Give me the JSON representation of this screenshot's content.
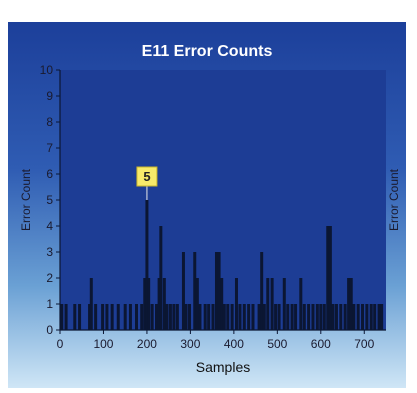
{
  "chart_data": {
    "type": "bar",
    "title": "E11 Error Counts",
    "xlabel": "Samples",
    "ylabel": "Error Count",
    "ylabel_right": "Error Count",
    "xlim": [
      0,
      750
    ],
    "ylim": [
      0,
      10
    ],
    "xticks": [
      0,
      100,
      200,
      300,
      400,
      500,
      600,
      700
    ],
    "yticks": [
      0,
      1,
      2,
      3,
      4,
      5,
      6,
      7,
      8,
      9,
      10
    ],
    "grid": false,
    "annotation": {
      "text": "5",
      "x": 200,
      "y": 5
    },
    "bar_color": "#0b1633",
    "plot_background": "#1d3d95",
    "points": [
      [
        4,
        1
      ],
      [
        14,
        1
      ],
      [
        34,
        1
      ],
      [
        45,
        1
      ],
      [
        68,
        1
      ],
      [
        72,
        2
      ],
      [
        82,
        1
      ],
      [
        98,
        1
      ],
      [
        108,
        1
      ],
      [
        120,
        1
      ],
      [
        134,
        1
      ],
      [
        150,
        1
      ],
      [
        162,
        1
      ],
      [
        176,
        1
      ],
      [
        188,
        1
      ],
      [
        195,
        2
      ],
      [
        200,
        5
      ],
      [
        204,
        2
      ],
      [
        212,
        1
      ],
      [
        222,
        1
      ],
      [
        228,
        2
      ],
      [
        232,
        4
      ],
      [
        240,
        2
      ],
      [
        246,
        1
      ],
      [
        254,
        1
      ],
      [
        262,
        1
      ],
      [
        270,
        1
      ],
      [
        284,
        3
      ],
      [
        290,
        1
      ],
      [
        298,
        1
      ],
      [
        310,
        3
      ],
      [
        316,
        2
      ],
      [
        322,
        1
      ],
      [
        334,
        1
      ],
      [
        342,
        1
      ],
      [
        352,
        1
      ],
      [
        360,
        3
      ],
      [
        366,
        3
      ],
      [
        372,
        2
      ],
      [
        378,
        1
      ],
      [
        386,
        1
      ],
      [
        396,
        1
      ],
      [
        406,
        2
      ],
      [
        414,
        1
      ],
      [
        424,
        1
      ],
      [
        434,
        1
      ],
      [
        444,
        1
      ],
      [
        458,
        1
      ],
      [
        464,
        3
      ],
      [
        470,
        1
      ],
      [
        478,
        2
      ],
      [
        488,
        2
      ],
      [
        496,
        1
      ],
      [
        504,
        1
      ],
      [
        516,
        2
      ],
      [
        524,
        1
      ],
      [
        534,
        1
      ],
      [
        542,
        1
      ],
      [
        554,
        2
      ],
      [
        562,
        1
      ],
      [
        572,
        1
      ],
      [
        582,
        1
      ],
      [
        592,
        1
      ],
      [
        600,
        1
      ],
      [
        608,
        1
      ],
      [
        616,
        4
      ],
      [
        622,
        4
      ],
      [
        628,
        1
      ],
      [
        636,
        1
      ],
      [
        646,
        1
      ],
      [
        656,
        1
      ],
      [
        664,
        2
      ],
      [
        670,
        2
      ],
      [
        676,
        1
      ],
      [
        686,
        1
      ],
      [
        696,
        1
      ],
      [
        706,
        1
      ],
      [
        716,
        1
      ],
      [
        724,
        1
      ],
      [
        734,
        1
      ],
      [
        740,
        1
      ]
    ]
  }
}
